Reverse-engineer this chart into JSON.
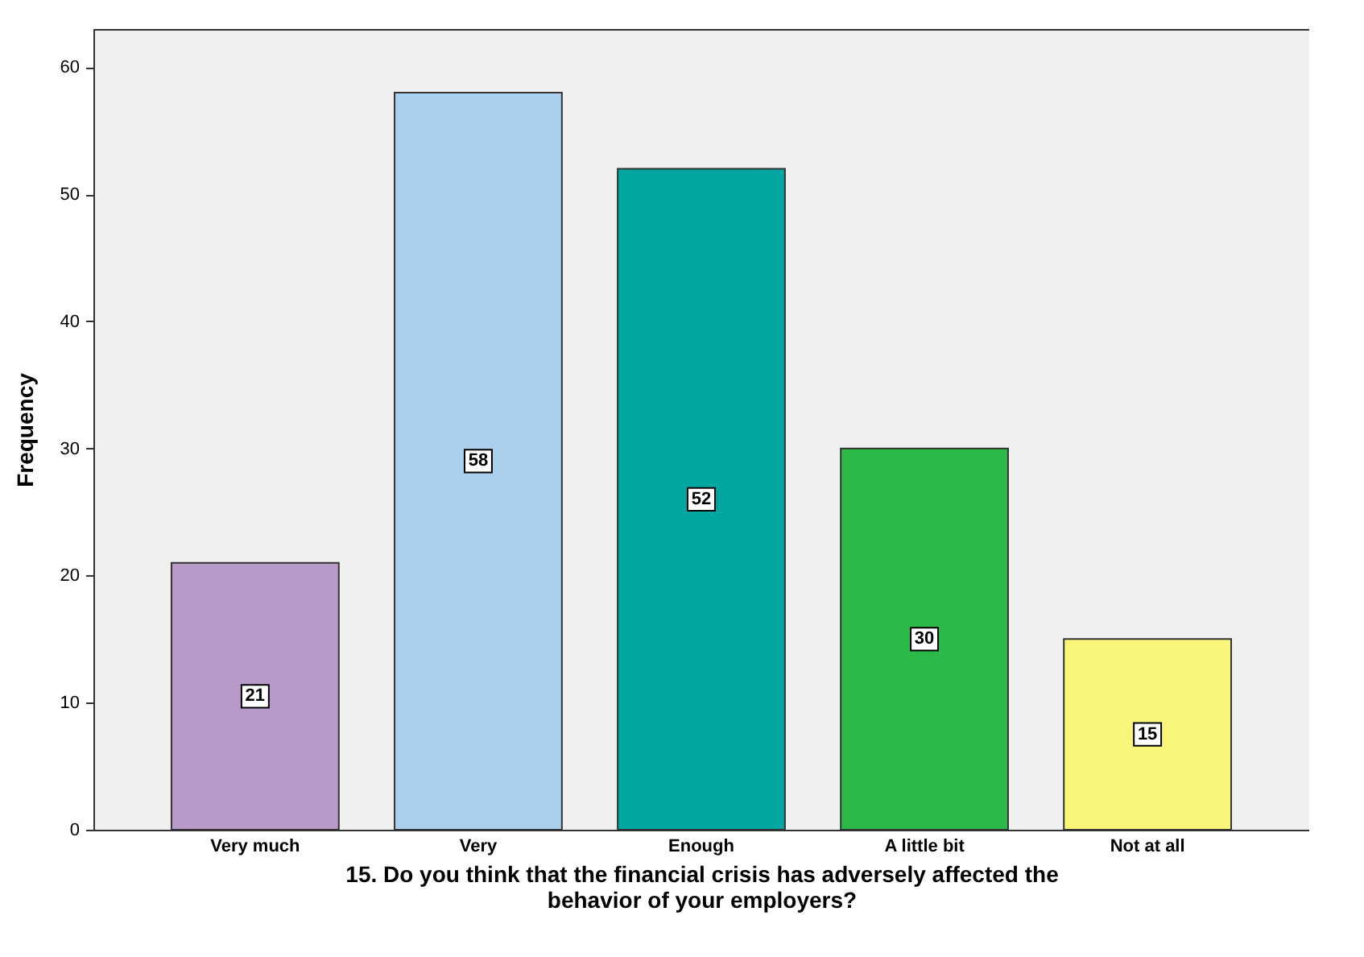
{
  "chart_data": {
    "type": "bar",
    "xlabel": "15. Do you think that the financial crisis has adversely affected the behavior of your employers?",
    "ylabel": "Frequency",
    "categories": [
      "Very much",
      "Very",
      "Enough",
      "A little bit",
      "Not at all"
    ],
    "values": [
      21,
      58,
      52,
      30,
      15
    ],
    "colors": [
      "#b89ac8",
      "#abd0ee",
      "#00a6a0",
      "#2db84a",
      "#f9f57a"
    ],
    "ylim": [
      0,
      63
    ],
    "yticks": [
      0,
      10,
      20,
      30,
      40,
      50,
      60
    ],
    "grid": false,
    "data_labels": true
  }
}
